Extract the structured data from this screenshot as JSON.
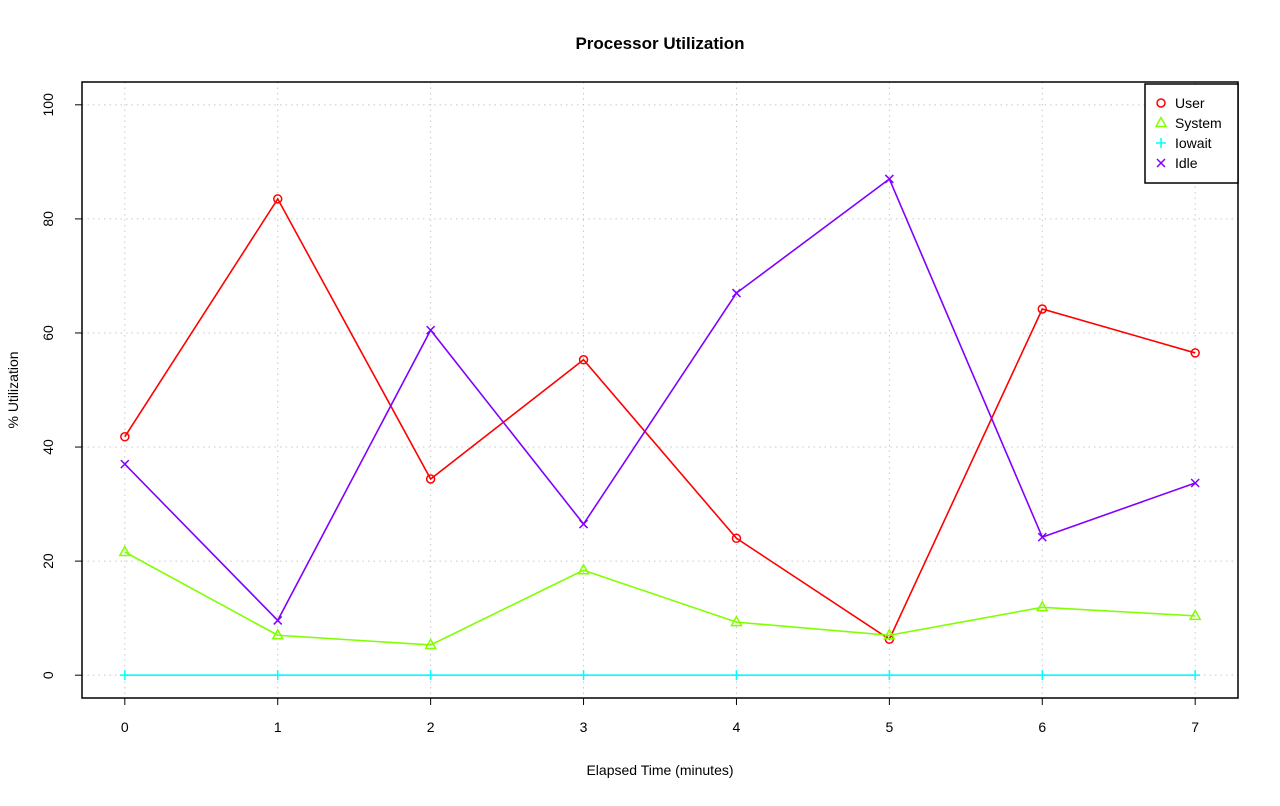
{
  "chart_data": {
    "type": "line",
    "title": "Processor Utilization",
    "xlabel": "Elapsed Time (minutes)",
    "ylabel": "% Utilization",
    "x": [
      0,
      1,
      2,
      3,
      4,
      5,
      6,
      7
    ],
    "xlim": [
      -0.28,
      7.28
    ],
    "ylim": [
      -4,
      104
    ],
    "xticks": [
      0,
      1,
      2,
      3,
      4,
      5,
      6,
      7
    ],
    "yticks": [
      0,
      20,
      40,
      60,
      80,
      100
    ],
    "grid": true,
    "legend_position": "top-right",
    "series": [
      {
        "name": "User",
        "color": "#FF0000",
        "marker": "circle",
        "values": [
          41.8,
          83.5,
          34.4,
          55.3,
          24.0,
          6.3,
          64.2,
          56.5
        ]
      },
      {
        "name": "System",
        "color": "#80FF00",
        "marker": "triangle",
        "values": [
          21.6,
          7.0,
          5.3,
          18.4,
          9.3,
          7.0,
          11.9,
          10.4
        ]
      },
      {
        "name": "Iowait",
        "color": "#00FFFF",
        "marker": "plus",
        "values": [
          0,
          0,
          0,
          0,
          0,
          0,
          0,
          0
        ]
      },
      {
        "name": "Idle",
        "color": "#8000FF",
        "marker": "cross",
        "values": [
          37.0,
          9.6,
          60.5,
          26.5,
          67.0,
          87.0,
          24.2,
          33.7
        ]
      }
    ]
  }
}
